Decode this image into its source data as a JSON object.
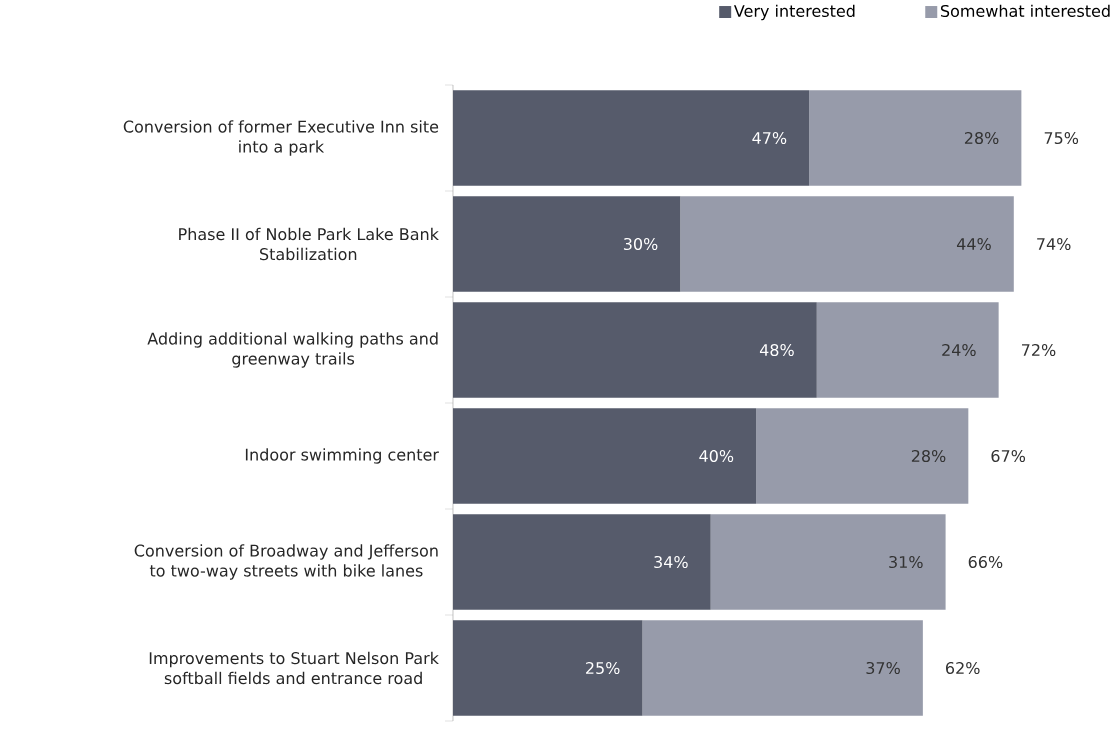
{
  "chart_data": {
    "type": "bar",
    "orientation": "horizontal",
    "stacked": true,
    "categories": [
      "Conversion of former Executive Inn site into a park",
      "Phase II of Noble Park Lake Bank Stabilization",
      "Adding additional walking paths and greenway trails",
      "Indoor swimming center",
      "Conversion of Broadway and Jefferson to two-way streets with bike lanes",
      "Improvements to Stuart Nelson Park softball fields and entrance road"
    ],
    "series": [
      {
        "name": "Very interested",
        "color": "#565b6b",
        "values": [
          47,
          30,
          48,
          40,
          34,
          25
        ],
        "value_labels": [
          "47%",
          "30%",
          "48%",
          "40%",
          "34%",
          "25%"
        ]
      },
      {
        "name": "Somewhat interested",
        "color": "#979baa",
        "values": [
          28,
          44,
          24,
          28,
          31,
          37
        ],
        "value_labels": [
          "28%",
          "44%",
          "24%",
          "28%",
          "31%",
          "37%"
        ]
      }
    ],
    "totals": [
      "75%",
      "74%",
      "72%",
      "67%",
      "66%",
      "62%"
    ],
    "tick_labels": "y",
    "legend": "top right"
  }
}
